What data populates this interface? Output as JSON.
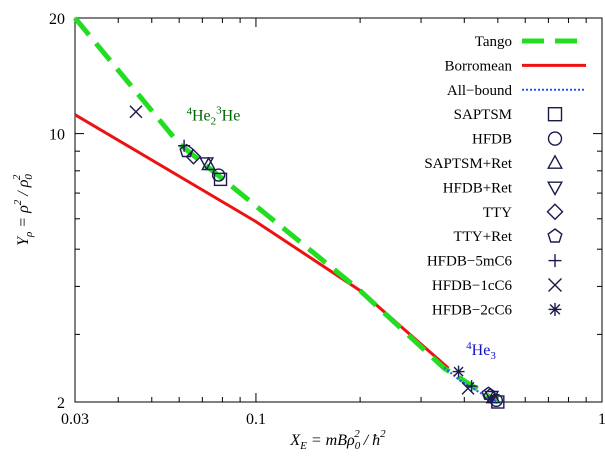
{
  "chart_data": {
    "type": "line",
    "xscale": "log",
    "yscale": "log",
    "xlim": [
      0.03,
      1
    ],
    "ylim": [
      2,
      20
    ],
    "xticks": [
      {
        "value": 0.03,
        "label": "0.03"
      },
      {
        "value": 0.1,
        "label": "0.1"
      },
      {
        "value": 1,
        "label": "1"
      }
    ],
    "yticks": [
      {
        "value": 2,
        "label": "2"
      },
      {
        "value": 10,
        "label": "10"
      },
      {
        "value": 20,
        "label": "20"
      }
    ],
    "xlabel": {
      "main": "X",
      "sub": "E",
      "rest": " = mBρ",
      "sub2": "0",
      "sup2": "2",
      "tail": " / ħ",
      "sup3": "2"
    },
    "ylabel": {
      "main": "Y",
      "sub": "ρ",
      "rest": " = ρ",
      "sup": "2",
      "rest2": " / ρ",
      "sub2": "0",
      "sup2": "2"
    },
    "legend_position": "top-right",
    "lines": [
      {
        "name": "Tango",
        "color": "#22dd22",
        "style": "dashed",
        "width": 5,
        "points": [
          [
            0.03,
            20
          ],
          [
            0.06,
            9.4
          ],
          [
            0.09,
            7.0
          ],
          [
            0.2,
            3.9
          ],
          [
            0.35,
            2.45
          ],
          [
            0.5,
            2.0
          ]
        ]
      },
      {
        "name": "Borromean",
        "color": "#ee1111",
        "style": "solid",
        "width": 3,
        "points": [
          [
            0.03,
            11.2
          ],
          [
            0.1,
            5.9
          ],
          [
            0.2,
            3.9
          ],
          [
            0.36,
            2.45
          ]
        ]
      },
      {
        "name": "All−bound",
        "color": "#2255ff",
        "style": "dotted",
        "width": 2,
        "points": [
          [
            0.35,
            2.46
          ],
          [
            0.39,
            2.27
          ],
          [
            0.45,
            2.1
          ],
          [
            0.5,
            2.0
          ]
        ]
      }
    ],
    "markers": [
      {
        "name": "SAPTSM",
        "symbol": "square",
        "points": [
          [
            0.079,
            7.6
          ],
          [
            0.5,
            2.0
          ]
        ]
      },
      {
        "name": "HFDB",
        "symbol": "circle",
        "points": [
          [
            0.078,
            7.8
          ],
          [
            0.495,
            2.02
          ]
        ]
      },
      {
        "name": "SAPTSM+Ret",
        "symbol": "triangle-up",
        "points": [
          [
            0.073,
            8.3
          ],
          [
            0.485,
            2.05
          ]
        ]
      },
      {
        "name": "HFDB+Ret",
        "symbol": "triangle-down",
        "points": [
          [
            0.072,
            8.4
          ],
          [
            0.48,
            2.07
          ]
        ]
      },
      {
        "name": "TTY",
        "symbol": "diamond",
        "points": [
          [
            0.066,
            8.7
          ],
          [
            0.475,
            2.08
          ]
        ]
      },
      {
        "name": "TTY+Ret",
        "symbol": "pentagon",
        "points": [
          [
            0.063,
            9.0
          ],
          [
            0.47,
            2.1
          ]
        ]
      },
      {
        "name": "HFDB−5mC6",
        "symbol": "plus",
        "points": [
          [
            0.062,
            9.3
          ],
          [
            0.42,
            2.2
          ]
        ]
      },
      {
        "name": "HFDB−1cC6",
        "symbol": "cross",
        "points": [
          [
            0.045,
            11.4
          ],
          [
            0.41,
            2.17
          ]
        ]
      },
      {
        "name": "HFDB−2cC6",
        "symbol": "star",
        "points": [
          [
            0.385,
            2.4
          ]
        ]
      }
    ],
    "annotations": [
      {
        "base": "He",
        "pre1": "4",
        "sub1": "2",
        "pre2": "3",
        "tail": "He",
        "color": "#006600",
        "x": 0.063,
        "y": 9.6
      },
      {
        "base": "He",
        "pre1": "4",
        "sub1": "3",
        "color": "#1111cc",
        "x": 0.405,
        "y": 2.35
      }
    ],
    "colors": {
      "marker": "#1a1a4d",
      "axis": "#000000"
    }
  }
}
